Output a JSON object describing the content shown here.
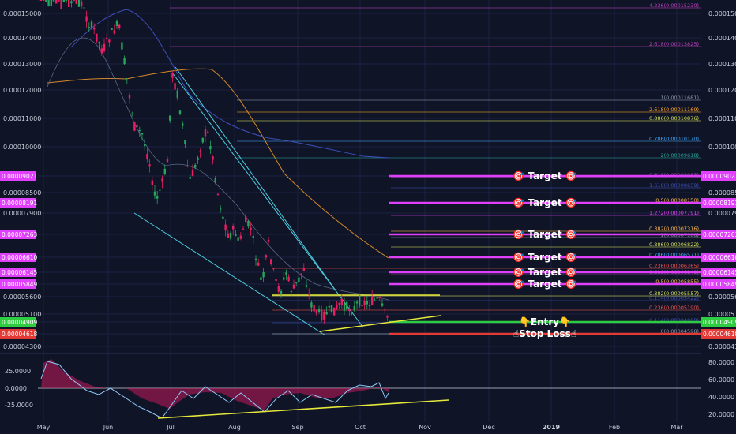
{
  "chart_data": {
    "type": "candlestick",
    "price_axis": {
      "ticks": [
        "0.00015000",
        "0.00014000",
        "0.00013000",
        "0.00012000",
        "0.00011000",
        "0.00010000",
        "0.00008500",
        "0.00007900",
        "0.00005600",
        "0.00005100",
        "0.00004300"
      ],
      "range": [
        4.3e-05,
        0.00015
      ]
    },
    "badges_left": [
      {
        "text": "0.00009021",
        "color": "#e040fb",
        "value": 9.021e-05
      },
      {
        "text": "0.00008191",
        "color": "#e040fb",
        "value": 8.191e-05
      },
      {
        "text": "0.00007263",
        "color": "#e040fb",
        "value": 7.263e-05
      },
      {
        "text": "0.00006610",
        "color": "#e040fb",
        "value": 6.61e-05
      },
      {
        "text": "0.00006145",
        "color": "#e040fb",
        "value": 6.145e-05
      },
      {
        "text": "0.00005849",
        "color": "#e040fb",
        "value": 5.849e-05
      },
      {
        "text": "0.00004909",
        "color": "#2ecc40",
        "value": 4.909e-05
      },
      {
        "text": "0.00004618",
        "color": "#e53935",
        "value": 4.618e-05
      }
    ],
    "badges_right": [
      {
        "text": "0.00009021",
        "color": "#e040fb",
        "value": 9.021e-05
      },
      {
        "text": "0.00008191",
        "color": "#e040fb",
        "value": 8.191e-05
      },
      {
        "text": "0.00007263",
        "color": "#e040fb",
        "value": 7.263e-05
      },
      {
        "text": "0.00006610",
        "color": "#e040fb",
        "value": 6.61e-05
      },
      {
        "text": "0.00006145",
        "color": "#e040fb",
        "value": 6.145e-05
      },
      {
        "text": "0.00005849",
        "color": "#e040fb",
        "value": 5.849e-05
      },
      {
        "text": "0.00004909",
        "color": "#2ecc40",
        "value": 4.909e-05
      },
      {
        "text": "0.00004618",
        "color": "#e53935",
        "value": 4.618e-05
      }
    ],
    "fib_levels": [
      {
        "label": "4.236(0.00015230)",
        "color": "#c040c0"
      },
      {
        "label": "2.618(0.00013825)",
        "color": "#c040c0"
      },
      {
        "label": "1(0.00011681)",
        "color": "#8898aa"
      },
      {
        "label": "2.618(0.00011169)",
        "color": "#ffa726"
      },
      {
        "label": "0.886(0.00010876)",
        "color": "#d4e157"
      },
      {
        "label": "0.786(0.00010170)",
        "color": "#42a5f5"
      },
      {
        "label": "2(0.00009618)",
        "color": "#26a69a"
      },
      {
        "label": "0.618(0.00008983)",
        "color": "#ab47bc"
      },
      {
        "label": "1.618(0.00008659)",
        "color": "#3f51b5"
      },
      {
        "label": "0.5(0.00008150)",
        "color": "#ffb74d"
      },
      {
        "label": "1.272(0.00007791)",
        "color": "#e040fb"
      },
      {
        "label": "0.382(0.00007316)",
        "color": "#ffb74d"
      },
      {
        "label": "1(0.00007108)",
        "color": "#8898aa"
      },
      {
        "label": "0.886(0.00006822)",
        "color": "#d4e157"
      },
      {
        "label": "0.786(0.00006571)",
        "color": "#42a5f5"
      },
      {
        "label": "0.236(0.00006365)",
        "color": "#ef5350"
      },
      {
        "label": "0.618(0.00006149)",
        "color": "#ab47bc"
      },
      {
        "label": "0.5(0.00005855)",
        "color": "#ffb74d"
      },
      {
        "label": "0.382(0.00005557)",
        "color": "#d4e157"
      },
      {
        "label": "0.114(0.00005422)",
        "color": "#3f51b5"
      },
      {
        "label": "0.236(0.00005190)",
        "color": "#ef5350"
      },
      {
        "label": "0.114(0.00004888)",
        "color": "#3f51b5"
      },
      {
        "label": "0(0.00004598)",
        "color": "#8898aa"
      }
    ],
    "annotations": [
      {
        "text": "🎯 Target 🎯",
        "value": 9.021e-05
      },
      {
        "text": "🎯 Target 🎯",
        "value": 8.191e-05
      },
      {
        "text": "🎯 Target 🎯",
        "value": 7.263e-05
      },
      {
        "text": "🎯 Target 🎯",
        "value": 6.61e-05
      },
      {
        "text": "🎯 Target 🎯",
        "value": 6.145e-05
      },
      {
        "text": "🎯 Target 🎯",
        "value": 5.849e-05
      },
      {
        "text": "👇Entry👇",
        "value": 4.909e-05
      },
      {
        "text": "☝Stop Loss☝",
        "value": 4.618e-05
      }
    ],
    "x_axis": [
      "May",
      "Jun",
      "Jul",
      "Aug",
      "Sep",
      "Oct",
      "Nov",
      "Dec",
      "2019",
      "Feb",
      "Mar"
    ],
    "indicator_left_ticks": [
      "25.0000",
      "0.0000",
      "-25.0000"
    ],
    "indicator_right_ticks": [
      "80.0000",
      "60.0000",
      "40.0000",
      "20.0000"
    ],
    "colors": {
      "bull": "#26a65b",
      "bear": "#e91e63",
      "trend": "#4dd0e1",
      "support": "#e6e93a"
    }
  }
}
